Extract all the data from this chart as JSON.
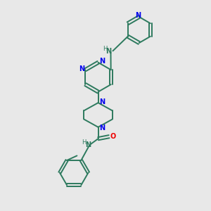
{
  "background_color": "#e8e8e8",
  "bond_color": "#2d7a5e",
  "nitrogen_color": "#0000ee",
  "oxygen_color": "#ee0000",
  "nh_color": "#2d7a5e",
  "figsize": [
    3.0,
    3.0
  ],
  "dpi": 100,
  "xlim": [
    0,
    10
  ],
  "ylim": [
    0,
    10
  ]
}
